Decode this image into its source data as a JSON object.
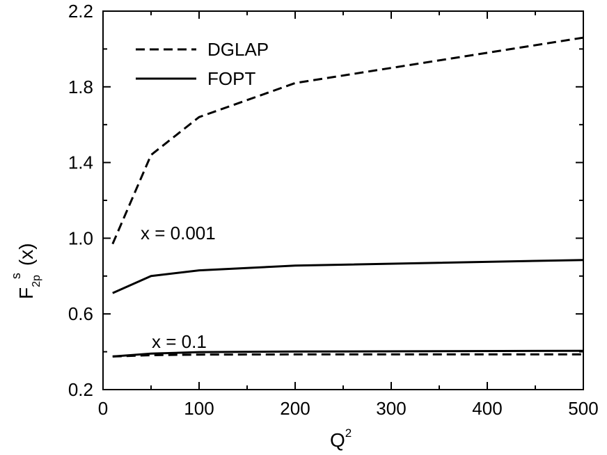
{
  "chart_data": {
    "type": "line",
    "xlim": [
      0,
      500
    ],
    "ylim": [
      0.2,
      2.2
    ],
    "x_ticks": [
      0,
      100,
      200,
      300,
      400,
      500
    ],
    "y_ticks": [
      "0.2",
      "0.6",
      "1.0",
      "1.4",
      "1.8",
      "2.2"
    ],
    "x_minor_step": 50,
    "y_minor_step": 0.2,
    "xlabel": {
      "base": "Q",
      "sup": "2"
    },
    "ylabel": {
      "base": "F",
      "sub": "2p",
      "sup": "s",
      "arg": "(x)"
    },
    "legend": {
      "placement": "top-left",
      "entries": [
        {
          "label": "DGLAP",
          "style": "dashed"
        },
        {
          "label": "FOPT",
          "style": "solid"
        }
      ]
    },
    "annotations": [
      {
        "text": "x = 0.001",
        "x": 45,
        "y": 0.97
      },
      {
        "text": "x = 0.1",
        "x": 55,
        "y": 0.41
      }
    ],
    "series": [
      {
        "group": "x = 0.001",
        "style": "dashed",
        "x": [
          10,
          50,
          100,
          200,
          500
        ],
        "y": [
          0.97,
          1.44,
          1.64,
          1.82,
          2.06
        ]
      },
      {
        "group": "x = 0.001",
        "style": "solid",
        "x": [
          10,
          50,
          100,
          200,
          500
        ],
        "y": [
          0.71,
          0.8,
          0.83,
          0.855,
          0.885
        ]
      },
      {
        "group": "x = 0.1",
        "style": "solid",
        "x": [
          10,
          50,
          100,
          200,
          500
        ],
        "y": [
          0.375,
          0.39,
          0.398,
          0.401,
          0.405
        ]
      },
      {
        "group": "x = 0.1",
        "style": "dashed",
        "x": [
          10,
          50,
          100,
          200,
          500
        ],
        "y": [
          0.375,
          0.382,
          0.385,
          0.386,
          0.386
        ]
      }
    ],
    "grid": false
  }
}
